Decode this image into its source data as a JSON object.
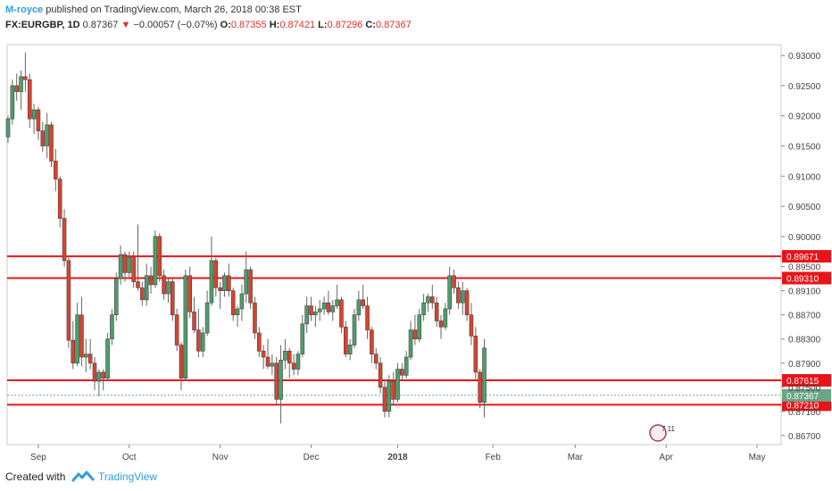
{
  "header": {
    "author": "M-royce",
    "published_text": "published on TradingView.com, March 26, 2018 00:38 EST",
    "symbol": "FX:EURGBP, 1D",
    "last": "0.87367",
    "change_arrow": "▼",
    "change": "−0.00057 (−0.07%)",
    "o_label": "O:",
    "o_value": "0.87355",
    "h_label": "H:",
    "h_value": "0.87421",
    "l_label": "L:",
    "l_value": "0.87296",
    "c_label": "C:",
    "c_value": "0.87367"
  },
  "footer": {
    "created_with": "Created with",
    "brand": "TradingView"
  },
  "badge": {
    "text": "7 11"
  },
  "colors": {
    "up": "#4e9e6b",
    "down": "#d9432f",
    "level_line": "#e8141a",
    "last_line": "#6aa587",
    "axis": "#888888",
    "author": "#2f9de0"
  },
  "chart_data": {
    "type": "candlestick",
    "symbol": "FX:EURGBP",
    "interval": "1D",
    "ylim": [
      0.8655,
      0.9318
    ],
    "y_ticks": [
      "0.93000",
      "0.92500",
      "0.92000",
      "0.91500",
      "0.91000",
      "0.90500",
      "0.90000",
      "0.89500",
      "0.89100",
      "0.88700",
      "0.88300",
      "0.87900",
      "0.87500",
      "0.87100",
      "0.86700"
    ],
    "x_ticks": [
      "Sep",
      "Oct",
      "Nov",
      "Dec",
      "2018",
      "Feb",
      "Mar",
      "Apr",
      "May"
    ],
    "x_tick_index": [
      7,
      28,
      49,
      70,
      90,
      112,
      131,
      152,
      173
    ],
    "levels": [
      {
        "value": 0.89671,
        "label": "0.89671"
      },
      {
        "value": 0.8931,
        "label": "0.89310"
      },
      {
        "value": 0.87615,
        "label": "0.87615"
      },
      {
        "value": 0.8721,
        "label": "0.87210"
      }
    ],
    "last_price": {
      "value": 0.87367,
      "label": "0.87367"
    },
    "candles": [
      [
        0.9165,
        0.92,
        0.9155,
        0.9195
      ],
      [
        0.9195,
        0.926,
        0.9185,
        0.925
      ],
      [
        0.925,
        0.927,
        0.9225,
        0.924
      ],
      [
        0.924,
        0.9275,
        0.921,
        0.9265
      ],
      [
        0.9265,
        0.9305,
        0.924,
        0.926
      ],
      [
        0.926,
        0.927,
        0.918,
        0.9195
      ],
      [
        0.9195,
        0.922,
        0.917,
        0.921
      ],
      [
        0.921,
        0.9215,
        0.916,
        0.9175
      ],
      [
        0.9175,
        0.919,
        0.914,
        0.915
      ],
      [
        0.915,
        0.9205,
        0.913,
        0.9185
      ],
      [
        0.9185,
        0.919,
        0.9115,
        0.9125
      ],
      [
        0.9125,
        0.9145,
        0.9075,
        0.9095
      ],
      [
        0.9095,
        0.91,
        0.9015,
        0.903
      ],
      [
        0.903,
        0.9045,
        0.895,
        0.896
      ],
      [
        0.896,
        0.8965,
        0.8815,
        0.8828
      ],
      [
        0.8828,
        0.886,
        0.878,
        0.879
      ],
      [
        0.879,
        0.889,
        0.8785,
        0.887
      ],
      [
        0.887,
        0.89,
        0.8785,
        0.88
      ],
      [
        0.88,
        0.883,
        0.8775,
        0.8805
      ],
      [
        0.8805,
        0.883,
        0.878,
        0.879
      ],
      [
        0.879,
        0.88,
        0.8745,
        0.876
      ],
      [
        0.876,
        0.878,
        0.8735,
        0.8775
      ],
      [
        0.8775,
        0.878,
        0.8745,
        0.8765
      ],
      [
        0.8765,
        0.884,
        0.876,
        0.883
      ],
      [
        0.883,
        0.888,
        0.882,
        0.887
      ],
      [
        0.887,
        0.894,
        0.886,
        0.893
      ],
      [
        0.893,
        0.8985,
        0.892,
        0.897
      ],
      [
        0.897,
        0.8975,
        0.8925,
        0.894
      ],
      [
        0.894,
        0.8975,
        0.893,
        0.8965
      ],
      [
        0.8965,
        0.8975,
        0.8915,
        0.8925
      ],
      [
        0.8925,
        0.902,
        0.891,
        0.8915
      ],
      [
        0.8915,
        0.8925,
        0.8885,
        0.8895
      ],
      [
        0.8895,
        0.8955,
        0.8885,
        0.8935
      ],
      [
        0.8935,
        0.895,
        0.8905,
        0.892
      ],
      [
        0.892,
        0.901,
        0.8915,
        0.9
      ],
      [
        0.9,
        0.9005,
        0.8925,
        0.8935
      ],
      [
        0.8935,
        0.8945,
        0.8895,
        0.8905
      ],
      [
        0.8905,
        0.893,
        0.889,
        0.8925
      ],
      [
        0.8925,
        0.893,
        0.886,
        0.887
      ],
      [
        0.887,
        0.888,
        0.881,
        0.882
      ],
      [
        0.882,
        0.8825,
        0.8745,
        0.8765
      ],
      [
        0.8765,
        0.8945,
        0.876,
        0.8935
      ],
      [
        0.8935,
        0.895,
        0.8865,
        0.8875
      ],
      [
        0.8875,
        0.89,
        0.884,
        0.8845
      ],
      [
        0.8845,
        0.888,
        0.88,
        0.881
      ],
      [
        0.881,
        0.885,
        0.88,
        0.884
      ],
      [
        0.884,
        0.891,
        0.8835,
        0.889
      ],
      [
        0.889,
        0.9,
        0.8885,
        0.896
      ],
      [
        0.896,
        0.8965,
        0.89,
        0.8915
      ],
      [
        0.8915,
        0.8925,
        0.888,
        0.891
      ],
      [
        0.891,
        0.894,
        0.89,
        0.8935
      ],
      [
        0.8935,
        0.8955,
        0.89,
        0.891
      ],
      [
        0.891,
        0.8915,
        0.886,
        0.887
      ],
      [
        0.887,
        0.8885,
        0.885,
        0.888
      ],
      [
        0.888,
        0.892,
        0.886,
        0.8905
      ],
      [
        0.8905,
        0.8975,
        0.889,
        0.8945
      ],
      [
        0.8945,
        0.895,
        0.888,
        0.889
      ],
      [
        0.889,
        0.89,
        0.883,
        0.884
      ],
      [
        0.884,
        0.885,
        0.88,
        0.881
      ],
      [
        0.881,
        0.882,
        0.878,
        0.88
      ],
      [
        0.88,
        0.883,
        0.878,
        0.8785
      ],
      [
        0.8785,
        0.8805,
        0.877,
        0.879
      ],
      [
        0.879,
        0.88,
        0.872,
        0.873
      ],
      [
        0.873,
        0.882,
        0.869,
        0.8795
      ],
      [
        0.8795,
        0.883,
        0.878,
        0.881
      ],
      [
        0.881,
        0.8815,
        0.8765,
        0.879
      ],
      [
        0.879,
        0.8805,
        0.877,
        0.878
      ],
      [
        0.878,
        0.881,
        0.877,
        0.8805
      ],
      [
        0.8805,
        0.887,
        0.88,
        0.8855
      ],
      [
        0.8855,
        0.89,
        0.884,
        0.8885
      ],
      [
        0.8885,
        0.89,
        0.886,
        0.887
      ],
      [
        0.887,
        0.8885,
        0.885,
        0.8875
      ],
      [
        0.8875,
        0.8895,
        0.886,
        0.888
      ],
      [
        0.888,
        0.89,
        0.887,
        0.889
      ],
      [
        0.889,
        0.891,
        0.887,
        0.8875
      ],
      [
        0.8875,
        0.8895,
        0.886,
        0.8885
      ],
      [
        0.8885,
        0.892,
        0.888,
        0.8895
      ],
      [
        0.8895,
        0.89,
        0.884,
        0.885
      ],
      [
        0.885,
        0.886,
        0.88,
        0.8805
      ],
      [
        0.8805,
        0.883,
        0.8795,
        0.882
      ],
      [
        0.882,
        0.888,
        0.8815,
        0.887
      ],
      [
        0.887,
        0.891,
        0.886,
        0.8895
      ],
      [
        0.8895,
        0.892,
        0.888,
        0.8885
      ],
      [
        0.8885,
        0.89,
        0.883,
        0.8845
      ],
      [
        0.8845,
        0.885,
        0.879,
        0.8805
      ],
      [
        0.8805,
        0.8815,
        0.878,
        0.879
      ],
      [
        0.879,
        0.88,
        0.874,
        0.875
      ],
      [
        0.875,
        0.876,
        0.87,
        0.871
      ],
      [
        0.871,
        0.877,
        0.87,
        0.876
      ],
      [
        0.876,
        0.8775,
        0.872,
        0.873
      ],
      [
        0.873,
        0.879,
        0.8725,
        0.878
      ],
      [
        0.878,
        0.879,
        0.876,
        0.877
      ],
      [
        0.877,
        0.881,
        0.8765,
        0.88
      ],
      [
        0.88,
        0.886,
        0.8795,
        0.8845
      ],
      [
        0.8845,
        0.887,
        0.882,
        0.883
      ],
      [
        0.883,
        0.888,
        0.8825,
        0.887
      ],
      [
        0.887,
        0.8905,
        0.886,
        0.889
      ],
      [
        0.889,
        0.8905,
        0.8875,
        0.89
      ],
      [
        0.89,
        0.892,
        0.888,
        0.889
      ],
      [
        0.889,
        0.89,
        0.885,
        0.886
      ],
      [
        0.886,
        0.887,
        0.883,
        0.885
      ],
      [
        0.885,
        0.889,
        0.8845,
        0.888
      ],
      [
        0.888,
        0.895,
        0.887,
        0.8935
      ],
      [
        0.8935,
        0.8945,
        0.8905,
        0.8915
      ],
      [
        0.8915,
        0.8925,
        0.888,
        0.889
      ],
      [
        0.889,
        0.8925,
        0.887,
        0.891
      ],
      [
        0.891,
        0.8915,
        0.886,
        0.887
      ],
      [
        0.887,
        0.889,
        0.882,
        0.8835
      ],
      [
        0.8835,
        0.885,
        0.876,
        0.8775
      ],
      [
        0.8775,
        0.878,
        0.8715,
        0.8725
      ],
      [
        0.8725,
        0.883,
        0.87,
        0.8815
      ]
    ]
  }
}
